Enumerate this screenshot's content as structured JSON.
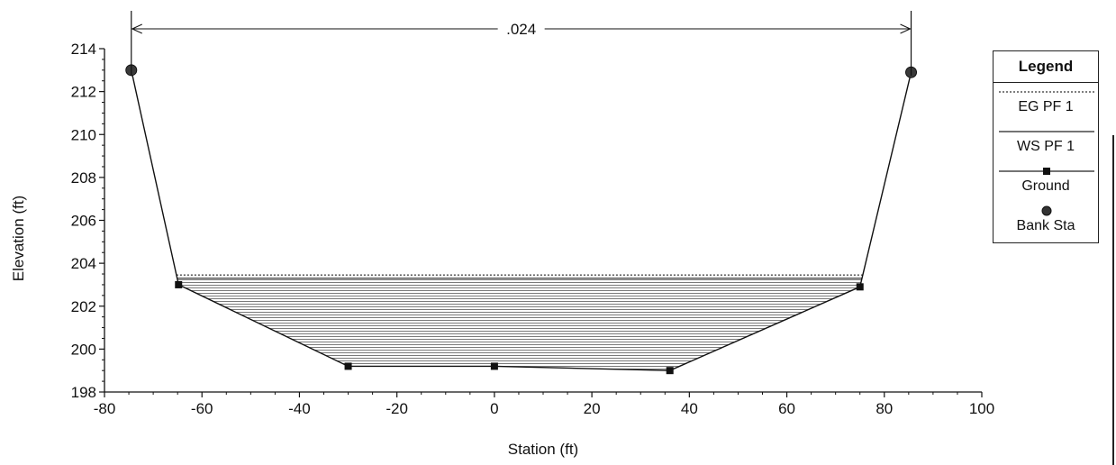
{
  "chart_data": {
    "type": "line",
    "title": "",
    "xlabel": "Station (ft)",
    "ylabel": "Elevation (ft)",
    "xlim": [
      -80,
      100
    ],
    "ylim": [
      198,
      214
    ],
    "x_ticks": [
      "-80",
      "-60",
      "-40",
      "-20",
      "0",
      "20",
      "40",
      "60",
      "80",
      "100"
    ],
    "y_ticks": [
      "198",
      "200",
      "202",
      "204",
      "206",
      "208",
      "210",
      "212",
      "214"
    ],
    "roughness_label": ".024",
    "roughness_span": [
      -74.5,
      85.5
    ],
    "series": [
      {
        "name": "EG PF 1",
        "y": 203.45
      },
      {
        "name": "WS PF 1",
        "y": 203.3
      },
      {
        "name": "Ground",
        "x": [
          -74.5,
          -64.8,
          -30,
          0,
          36,
          75,
          85.5
        ],
        "values": [
          213.0,
          203.0,
          199.2,
          199.2,
          199.0,
          202.9,
          212.9
        ]
      },
      {
        "name": "Bank Sta",
        "x": [
          -74.5,
          85.5
        ],
        "values": [
          213.0,
          212.9
        ]
      }
    ],
    "legend_title": "Legend",
    "legend_position": "right",
    "grid": false
  }
}
